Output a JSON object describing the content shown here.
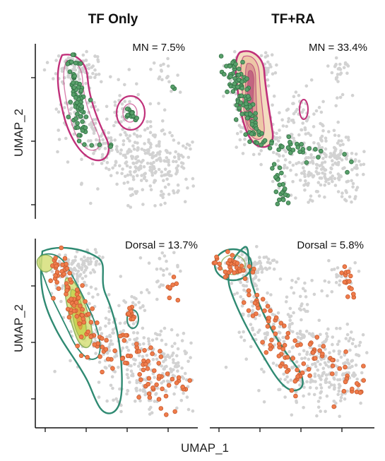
{
  "figure": {
    "column_titles": [
      "TF Only",
      "TF+RA"
    ],
    "row_ylabel": "UMAP_2",
    "xlabel": "UMAP_1"
  },
  "colors": {
    "background_cells": "#d2d2d2",
    "mn_cells": "#58a06a",
    "dorsal_cells": "#f07c4b",
    "mn_contour": "#c0307a",
    "dorsal_contour": "#2f8a72",
    "mn_density_fill": "#f3dcc0",
    "dorsal_density_fill": "#c9d24e"
  },
  "chart_data": [
    {
      "type": "scatter",
      "panel": "top-left",
      "annotation": "MN = 7.5%",
      "series": [
        {
          "role": "background",
          "color": "#d2d2d2",
          "points": [
            [
              0.15,
              0.9
            ],
            [
              0.3,
              0.92
            ],
            [
              0.25,
              0.85
            ],
            [
              0.18,
              0.8
            ],
            [
              0.35,
              0.78
            ],
            [
              0.5,
              0.8
            ],
            [
              0.62,
              0.77
            ],
            [
              0.75,
              0.82
            ],
            [
              0.9,
              0.83
            ],
            [
              0.88,
              0.76
            ],
            [
              0.2,
              0.7
            ],
            [
              0.28,
              0.66
            ],
            [
              0.34,
              0.6
            ],
            [
              0.4,
              0.55
            ],
            [
              0.45,
              0.5
            ],
            [
              0.5,
              0.45
            ],
            [
              0.55,
              0.4
            ],
            [
              0.6,
              0.35
            ],
            [
              0.65,
              0.3
            ],
            [
              0.7,
              0.25
            ],
            [
              0.75,
              0.2
            ],
            [
              0.8,
              0.18
            ],
            [
              0.85,
              0.25
            ],
            [
              0.88,
              0.33
            ],
            [
              0.9,
              0.42
            ],
            [
              0.84,
              0.48
            ],
            [
              0.76,
              0.44
            ],
            [
              0.7,
              0.4
            ],
            [
              0.6,
              0.22
            ],
            [
              0.55,
              0.15
            ],
            [
              0.5,
              0.1
            ],
            [
              0.58,
              0.08
            ],
            [
              0.66,
              0.12
            ],
            [
              0.72,
              0.08
            ],
            [
              0.8,
              0.1
            ],
            [
              0.86,
              0.14
            ],
            [
              0.68,
              0.5
            ],
            [
              0.62,
              0.55
            ],
            [
              0.56,
              0.6
            ],
            [
              0.74,
              0.62
            ],
            [
              0.8,
              0.55
            ],
            [
              0.92,
              0.52
            ],
            [
              0.7,
              0.7
            ],
            [
              0.64,
              0.66
            ],
            [
              0.46,
              0.3
            ],
            [
              0.4,
              0.25
            ],
            [
              0.52,
              0.26
            ],
            [
              0.78,
              0.32
            ],
            [
              0.72,
              0.15
            ],
            [
              0.62,
              0.18
            ]
          ]
        },
        {
          "role": "MN",
          "color": "#58a06a",
          "points": [
            [
              0.2,
              0.88
            ],
            [
              0.22,
              0.84
            ],
            [
              0.18,
              0.8
            ],
            [
              0.24,
              0.78
            ],
            [
              0.2,
              0.74
            ],
            [
              0.26,
              0.72
            ],
            [
              0.22,
              0.68
            ],
            [
              0.28,
              0.66
            ],
            [
              0.3,
              0.62
            ],
            [
              0.26,
              0.6
            ],
            [
              0.32,
              0.56
            ],
            [
              0.34,
              0.52
            ],
            [
              0.3,
              0.5
            ],
            [
              0.36,
              0.48
            ],
            [
              0.4,
              0.45
            ],
            [
              0.38,
              0.42
            ],
            [
              0.44,
              0.4
            ],
            [
              0.58,
              0.6
            ],
            [
              0.6,
              0.63
            ],
            [
              0.62,
              0.58
            ],
            [
              0.64,
              0.61
            ],
            [
              0.82,
              0.78
            ],
            [
              0.5,
              0.38
            ],
            [
              0.42,
              0.12
            ]
          ]
        }
      ],
      "contours": [
        {
          "color": "#c0307a",
          "levels": 3
        }
      ]
    },
    {
      "type": "scatter",
      "panel": "top-right",
      "annotation": "MN = 33.4%",
      "series": [
        {
          "role": "background",
          "color": "#d2d2d2"
        },
        {
          "role": "MN",
          "color": "#58a06a"
        }
      ],
      "contours": [
        {
          "color": "#c0307a",
          "levels": 6,
          "filled": true
        }
      ]
    },
    {
      "type": "scatter",
      "panel": "bottom-left",
      "annotation": "Dorsal = 13.7%",
      "series": [
        {
          "role": "background",
          "color": "#d2d2d2"
        },
        {
          "role": "Dorsal",
          "color": "#f07c4b"
        }
      ],
      "contours": [
        {
          "color": "#2f8a72",
          "levels": 6,
          "filled": true
        }
      ]
    },
    {
      "type": "scatter",
      "panel": "bottom-right",
      "annotation": "Dorsal = 5.8%",
      "series": [
        {
          "role": "background",
          "color": "#d2d2d2"
        },
        {
          "role": "Dorsal",
          "color": "#f07c4b"
        }
      ],
      "contours": [
        {
          "color": "#2f8a72",
          "levels": 2
        }
      ]
    }
  ]
}
